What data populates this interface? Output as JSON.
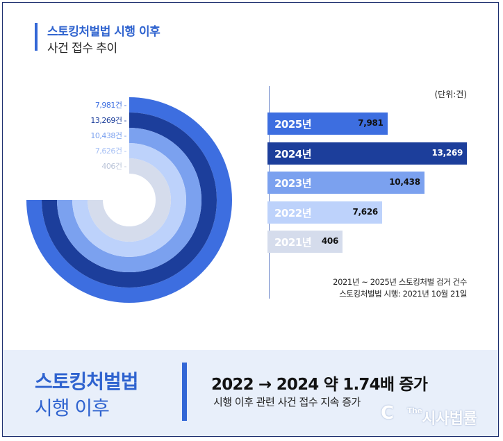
{
  "header": {
    "title": "스토킹처벌법 시행 이후",
    "subtitle": "사건 접수 추이"
  },
  "chart_data": {
    "type": "bar",
    "orientation": "horizontal",
    "unit_label": "(단위:건)",
    "categories": [
      "2025년",
      "2024년",
      "2023년",
      "2022년",
      "2021년"
    ],
    "values": [
      7981,
      13269,
      10438,
      7626,
      406
    ],
    "value_labels": [
      "7,981",
      "13,269",
      "10,438",
      "7,626",
      "406"
    ],
    "colors": [
      "#3d6ee0",
      "#1c3e9b",
      "#7ba1ef",
      "#bdd2fb",
      "#d5dcec"
    ],
    "ring_labels": [
      "7,981건 -",
      "13,269건 -",
      "10,438건 -",
      "7,626건 -",
      "406건 -"
    ],
    "ring_label_colors": [
      "#3d6ee0",
      "#1c3e9b",
      "#7ba1ef",
      "#a9c2f5",
      "#b9c3d8"
    ],
    "xlim": [
      0,
      13269
    ]
  },
  "notes": {
    "line1": "2021년 ~ 2025년 스토킹처벌 검거 건수",
    "line2": "스토킹처벌법 시행: 2021년 10월 21일"
  },
  "footer": {
    "title_line1": "스토킹처벌법",
    "title_line2": "시행 이후",
    "headline": "2022 → 2024 약 1.74배 증가",
    "subline": "시행 이후 관련 사건 접수 지속 증가"
  },
  "watermark": {
    "logo": "C",
    "prefix": "The",
    "name": "시사법률"
  }
}
